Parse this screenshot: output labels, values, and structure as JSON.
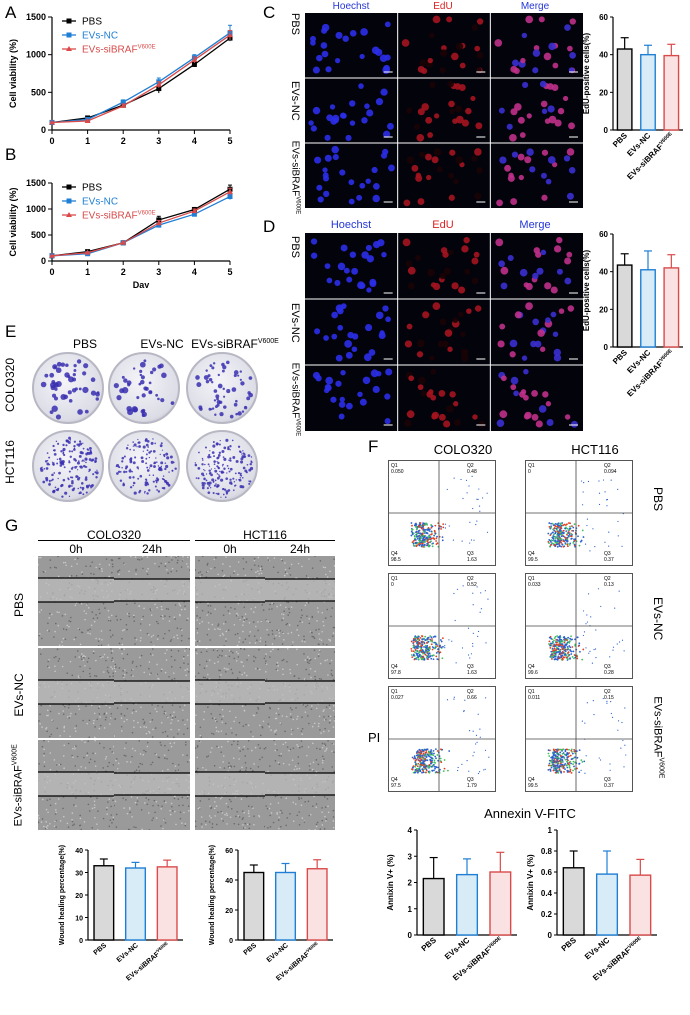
{
  "panels": {
    "A": "A",
    "B": "B",
    "C": "C",
    "D": "D",
    "E": "E",
    "F": "F",
    "G": "G"
  },
  "groups": [
    "PBS",
    "EVs-NC",
    "EVs-siBRAF"
  ],
  "group_sup": "V600E",
  "colors": {
    "PBS": "#000000",
    "NC": "#1f7fd4",
    "si": "#d94b4b",
    "nc_fill": "#d8ecf8",
    "si_fill": "#fbe2e2",
    "pbs_fill": "#d9d9d9"
  },
  "microscopy": {
    "channels": [
      "Hoechst",
      "EdU",
      "Merge"
    ]
  },
  "colony": {
    "cols": [
      "PBS",
      "EVs-NC",
      "EVs-siBRAF"
    ],
    "rows": [
      "COLO320",
      "HCT116"
    ]
  },
  "flow": {
    "cols": [
      "COLO320",
      "HCT116"
    ],
    "xlabel": "Annexin V-FITC",
    "ylabel": "PI",
    "plots": [
      [
        {
          "q1": "Q1",
          "v1": "0.050",
          "q2": "Q2",
          "v2": "0.48",
          "q3": "Q3",
          "v3": "1.63",
          "q4": "Q4",
          "v4": "98.5"
        },
        {
          "q1": "Q1",
          "v1": "0",
          "q2": "Q2",
          "v2": "0.094",
          "q3": "Q3",
          "v3": "0.37",
          "q4": "Q4",
          "v4": "99.5"
        }
      ],
      [
        {
          "q1": "Q1",
          "v1": "0",
          "q2": "Q2",
          "v2": "0.52",
          "q3": "Q3",
          "v3": "1.63",
          "q4": "Q4",
          "v4": "97.8"
        },
        {
          "q1": "Q1",
          "v1": "0.033",
          "q2": "Q2",
          "v2": "0.13",
          "q3": "Q3",
          "v3": "0.28",
          "q4": "Q4",
          "v4": "99.6"
        }
      ],
      [
        {
          "q1": "Q1",
          "v1": "0.027",
          "q2": "Q2",
          "v2": "0.66",
          "q3": "Q3",
          "v3": "1.79",
          "q4": "Q4",
          "v4": "97.5"
        },
        {
          "q1": "Q1",
          "v1": "0.011",
          "q2": "Q2",
          "v2": "0.15",
          "q3": "Q3",
          "v3": "0.37",
          "q4": "Q4",
          "v4": "99.5"
        }
      ]
    ]
  },
  "wound": {
    "cols": [
      "COLO320",
      "HCT116"
    ],
    "times": [
      "0h",
      "24h"
    ]
  },
  "chart_data": [
    {
      "id": "A",
      "type": "line",
      "xlabel": "Day",
      "ylabel": "Cell viability (%)",
      "x": [
        0,
        1,
        2,
        3,
        4,
        5
      ],
      "xlim": [
        0,
        5
      ],
      "ylim": [
        0,
        1500
      ],
      "yticks": [
        0,
        500,
        1000,
        1500
      ],
      "series": [
        {
          "name": "PBS",
          "values": [
            100,
            160,
            330,
            550,
            870,
            1220
          ],
          "err": [
            5,
            10,
            20,
            60,
            30,
            40
          ]
        },
        {
          "name": "EVs-NC",
          "values": [
            100,
            140,
            370,
            640,
            960,
            1290
          ],
          "err": [
            5,
            15,
            30,
            50,
            40,
            100
          ]
        },
        {
          "name": "EVs-siBRAF",
          "values": [
            100,
            120,
            320,
            600,
            930,
            1260
          ],
          "err": [
            5,
            10,
            25,
            40,
            40,
            60
          ]
        }
      ]
    },
    {
      "id": "B",
      "type": "line",
      "xlabel": "Day",
      "ylabel": "Cell viability (%)",
      "x": [
        0,
        1,
        2,
        3,
        4,
        5
      ],
      "xlim": [
        0,
        5
      ],
      "ylim": [
        0,
        1500
      ],
      "yticks": [
        0,
        500,
        1000,
        1500
      ],
      "series": [
        {
          "name": "PBS",
          "values": [
            100,
            180,
            350,
            790,
            990,
            1380
          ],
          "err": [
            5,
            10,
            15,
            70,
            40,
            80
          ]
        },
        {
          "name": "EVs-NC",
          "values": [
            100,
            140,
            350,
            690,
            900,
            1240
          ],
          "err": [
            5,
            10,
            15,
            40,
            40,
            60
          ]
        },
        {
          "name": "EVs-siBRAF",
          "values": [
            100,
            160,
            350,
            730,
            960,
            1330
          ],
          "err": [
            5,
            10,
            15,
            50,
            40,
            70
          ]
        }
      ]
    },
    {
      "id": "C-bar",
      "type": "bar",
      "ylabel": "EdU-positive cells(%)",
      "categories": [
        "PBS",
        "EVs-NC",
        "EVs-siBRAF"
      ],
      "values": [
        43,
        40,
        39.5
      ],
      "err": [
        6,
        5,
        6
      ],
      "ylim": [
        0,
        60
      ],
      "yticks": [
        0,
        20,
        40,
        60
      ]
    },
    {
      "id": "D-bar",
      "type": "bar",
      "ylabel": "EdU-positive cells(%)",
      "categories": [
        "PBS",
        "EVs-NC",
        "EVs-siBRAF"
      ],
      "values": [
        43.5,
        41,
        42
      ],
      "err": [
        6,
        10,
        7
      ],
      "ylim": [
        0,
        60
      ],
      "yticks": [
        0,
        20,
        40,
        60
      ]
    },
    {
      "id": "G-bar1",
      "type": "bar",
      "ylabel": "Wound healing percentage(%)",
      "categories": [
        "PBS",
        "EVs-NC",
        "EVs-siBRAF"
      ],
      "values": [
        33,
        32,
        32.5
      ],
      "err": [
        3,
        2.5,
        3
      ],
      "ylim": [
        0,
        40
      ],
      "yticks": [
        0,
        10,
        20,
        30,
        40
      ]
    },
    {
      "id": "G-bar2",
      "type": "bar",
      "ylabel": "Wound healing percentage(%)",
      "categories": [
        "PBS",
        "EVs-NC",
        "EVs-siBRAF"
      ],
      "values": [
        45,
        45,
        47.5
      ],
      "err": [
        5,
        6,
        6
      ],
      "ylim": [
        0,
        60
      ],
      "yticks": [
        0,
        20,
        40,
        60
      ]
    },
    {
      "id": "F-bar1",
      "type": "bar",
      "ylabel": "Annixin V+ (%)",
      "categories": [
        "PBS",
        "EVs-NC",
        "EVs-siBRAF"
      ],
      "values": [
        2.15,
        2.3,
        2.4
      ],
      "err": [
        0.8,
        0.6,
        0.75
      ],
      "ylim": [
        0,
        4
      ],
      "yticks": [
        0,
        1,
        2,
        3,
        4
      ]
    },
    {
      "id": "F-bar2",
      "type": "bar",
      "ylabel": "Annixin V+ (%)",
      "categories": [
        "PBS",
        "EVs-NC",
        "EVs-siBRAF"
      ],
      "values": [
        0.64,
        0.58,
        0.57
      ],
      "err": [
        0.16,
        0.22,
        0.15
      ],
      "ylim": [
        0,
        1.0
      ],
      "yticks": [
        0,
        0.2,
        0.4,
        0.6,
        0.8,
        1.0
      ]
    }
  ]
}
